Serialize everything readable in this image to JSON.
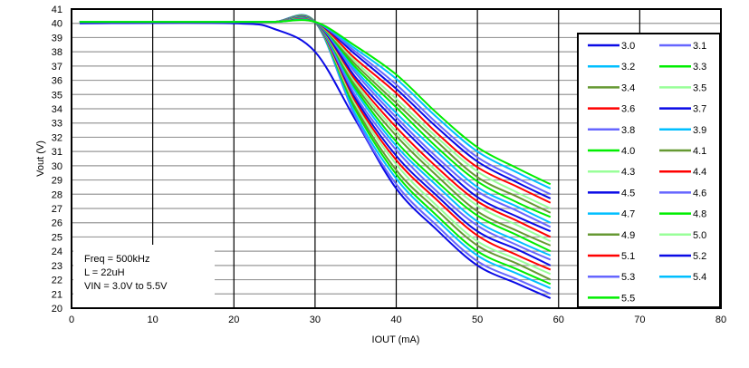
{
  "chart_data": {
    "type": "line",
    "xlabel": "IOUT (mA)",
    "ylabel": "Vout (V)",
    "xlim": [
      0,
      80
    ],
    "ylim": [
      20,
      41
    ],
    "xticks": [
      0,
      10,
      20,
      30,
      40,
      50,
      60,
      70,
      80
    ],
    "yticks": [
      20,
      21,
      22,
      23,
      24,
      25,
      26,
      27,
      28,
      29,
      30,
      31,
      32,
      33,
      34,
      35,
      36,
      37,
      38,
      39,
      40,
      41
    ],
    "grid": {
      "horizontal": true,
      "vertical": true
    },
    "legend_placement": "right",
    "annotation": [
      "Freq = 500kHz",
      "L = 22uH",
      "VIN = 3.0V to 5.5V"
    ],
    "x": [
      1,
      20,
      25,
      30,
      35,
      40,
      45,
      50,
      55,
      59
    ],
    "series": [
      {
        "name": "3.0",
        "color": "#0a0ae6",
        "values": [
          40.0,
          40.0,
          39.6,
          38.0,
          33.2,
          28.4,
          25.5,
          23.0,
          21.7,
          20.7
        ]
      },
      {
        "name": "3.1",
        "color": "#6666ff",
        "values": [
          40.1,
          40.1,
          40.1,
          40.1,
          33.4,
          28.7,
          25.8,
          23.3,
          22.0,
          21.0
        ]
      },
      {
        "name": "3.2",
        "color": "#00bfff",
        "values": [
          40.1,
          40.1,
          40.1,
          40.1,
          33.6,
          29.1,
          26.2,
          23.7,
          22.4,
          21.4
        ]
      },
      {
        "name": "3.3",
        "color": "#00ee00",
        "values": [
          40.1,
          40.1,
          40.1,
          40.1,
          33.9,
          29.4,
          26.5,
          24.0,
          22.7,
          21.7
        ]
      },
      {
        "name": "3.4",
        "color": "#669933",
        "values": [
          40.1,
          40.1,
          40.1,
          40.1,
          34.1,
          29.7,
          26.9,
          24.4,
          23.1,
          22.0
        ]
      },
      {
        "name": "3.5",
        "color": "#99ff99",
        "values": [
          40.1,
          40.1,
          40.1,
          40.1,
          34.3,
          30.1,
          27.2,
          24.7,
          23.4,
          22.4
        ]
      },
      {
        "name": "3.6",
        "color": "#ff0000",
        "values": [
          40.1,
          40.1,
          40.1,
          40.1,
          34.5,
          30.4,
          27.6,
          25.1,
          23.7,
          22.7
        ]
      },
      {
        "name": "3.7",
        "color": "#0a0ae6",
        "values": [
          40.1,
          40.1,
          40.1,
          40.1,
          34.7,
          30.7,
          27.9,
          25.4,
          24.1,
          23.0
        ]
      },
      {
        "name": "3.8",
        "color": "#6666ff",
        "values": [
          40.1,
          40.1,
          40.1,
          40.1,
          34.9,
          31.1,
          28.2,
          25.8,
          24.4,
          23.4
        ]
      },
      {
        "name": "3.9",
        "color": "#00bfff",
        "values": [
          40.1,
          40.1,
          40.1,
          40.1,
          35.2,
          31.4,
          28.6,
          26.1,
          24.7,
          23.7
        ]
      },
      {
        "name": "4.0",
        "color": "#00ee00",
        "values": [
          40.1,
          40.1,
          40.1,
          40.1,
          35.4,
          31.7,
          28.9,
          26.5,
          25.1,
          24.0
        ]
      },
      {
        "name": "4.1",
        "color": "#669933",
        "values": [
          40.1,
          40.1,
          40.1,
          40.1,
          35.6,
          32.1,
          29.3,
          26.8,
          25.4,
          24.4
        ]
      },
      {
        "name": "4.3",
        "color": "#99ff99",
        "values": [
          40.1,
          40.1,
          40.1,
          40.1,
          35.8,
          32.4,
          29.6,
          27.2,
          25.8,
          24.7
        ]
      },
      {
        "name": "4.4",
        "color": "#ff0000",
        "values": [
          40.1,
          40.1,
          40.1,
          40.1,
          36.0,
          32.7,
          29.9,
          27.5,
          26.1,
          25.0
        ]
      },
      {
        "name": "4.5",
        "color": "#0a0ae6",
        "values": [
          40.1,
          40.1,
          40.1,
          40.1,
          36.2,
          33.1,
          30.3,
          27.8,
          26.4,
          25.4
        ]
      },
      {
        "name": "4.6",
        "color": "#6666ff",
        "values": [
          40.1,
          40.1,
          40.1,
          40.1,
          36.5,
          33.4,
          30.6,
          28.2,
          26.8,
          25.7
        ]
      },
      {
        "name": "4.7",
        "color": "#00bfff",
        "values": [
          40.1,
          40.1,
          40.1,
          40.1,
          36.7,
          33.7,
          31.0,
          28.5,
          27.1,
          26.0
        ]
      },
      {
        "name": "4.8",
        "color": "#00ee00",
        "values": [
          40.1,
          40.1,
          40.1,
          40.1,
          36.9,
          34.1,
          31.3,
          28.9,
          27.4,
          26.4
        ]
      },
      {
        "name": "4.9",
        "color": "#669933",
        "values": [
          40.1,
          40.1,
          40.1,
          40.1,
          37.1,
          34.4,
          31.7,
          29.2,
          27.8,
          26.7
        ]
      },
      {
        "name": "5.0",
        "color": "#99ff99",
        "values": [
          40.1,
          40.1,
          40.1,
          40.1,
          37.3,
          34.7,
          32.0,
          29.6,
          28.1,
          27.0
        ]
      },
      {
        "name": "5.1",
        "color": "#ff0000",
        "values": [
          40.1,
          40.1,
          40.1,
          40.1,
          37.5,
          35.1,
          32.3,
          29.9,
          28.5,
          27.4
        ]
      },
      {
        "name": "5.2",
        "color": "#0a0ae6",
        "values": [
          40.1,
          40.1,
          40.1,
          40.1,
          37.8,
          35.4,
          32.7,
          30.3,
          28.8,
          27.7
        ]
      },
      {
        "name": "5.3",
        "color": "#6666ff",
        "values": [
          40.1,
          40.1,
          40.1,
          40.1,
          38.0,
          35.7,
          33.0,
          30.6,
          29.1,
          28.0
        ]
      },
      {
        "name": "5.4",
        "color": "#00bfff",
        "values": [
          40.1,
          40.1,
          40.1,
          40.1,
          38.2,
          36.1,
          33.4,
          31.0,
          29.5,
          28.4
        ]
      },
      {
        "name": "5.5",
        "color": "#00ee00",
        "values": [
          40.1,
          40.1,
          40.1,
          40.1,
          38.4,
          36.4,
          33.7,
          31.3,
          29.8,
          28.7
        ]
      }
    ]
  }
}
